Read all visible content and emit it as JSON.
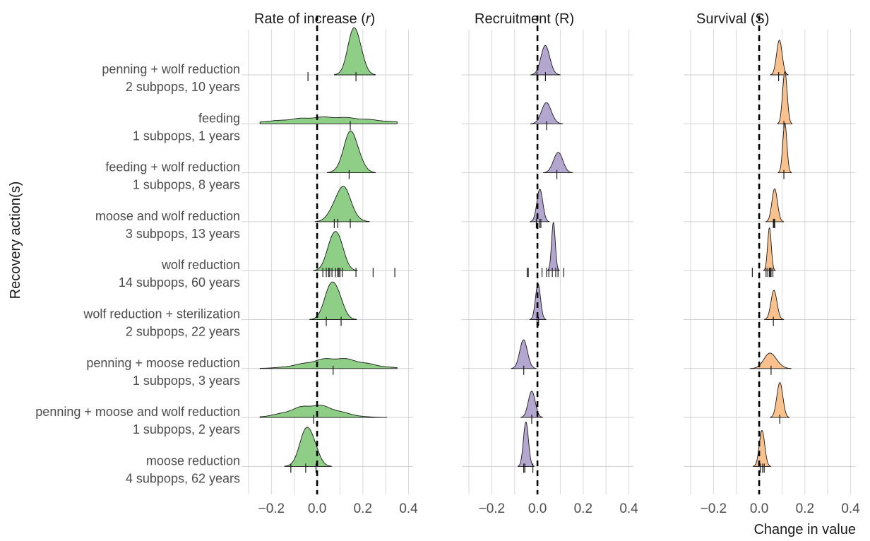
{
  "chart_data": {
    "type": "ridgeline",
    "ylabel": "Recovery action(s)",
    "xlabel": "Change in value",
    "xlim": [
      -0.3,
      0.42
    ],
    "xticks": [
      -0.2,
      0.0,
      0.2,
      0.4
    ],
    "xtick_labels": [
      "−0.2",
      "0.0",
      "0.2",
      "0.4"
    ],
    "reference_line": 0,
    "grid": true,
    "categories": [
      {
        "action": "penning + wolf reduction",
        "detail": "2 subpops, 10 years"
      },
      {
        "action": "feeding",
        "detail": "1 subpops, 1 years"
      },
      {
        "action": "feeding + wolf reduction",
        "detail": "1 subpops, 8 years"
      },
      {
        "action": "moose and wolf reduction",
        "detail": "3 subpops, 13 years"
      },
      {
        "action": "wolf reduction",
        "detail": "14 subpops, 60 years"
      },
      {
        "action": "wolf reduction + sterilization",
        "detail": "2 subpops, 22 years"
      },
      {
        "action": "penning + moose reduction",
        "detail": "1 subpops, 3 years"
      },
      {
        "action": "penning + moose and wolf reduction",
        "detail": "1 subpops, 2 years"
      },
      {
        "action": "moose reduction",
        "detail": "4 subpops, 62 years"
      }
    ],
    "panels": [
      {
        "title_main": "Rate of increase (",
        "title_symbol": "r",
        "title_end": ")",
        "color": "#8fce87",
        "distributions": [
          {
            "mean": 0.165,
            "sd": 0.028,
            "height": 0.95,
            "obs": [
              -0.04,
              0.17
            ]
          },
          {
            "mean": 0.05,
            "sd": 0.19,
            "height": 0.13,
            "obs": [
              0.145
            ]
          },
          {
            "mean": 0.15,
            "sd": 0.033,
            "height": 0.8,
            "obs": [
              0.14
            ]
          },
          {
            "mean": 0.11,
            "sd": 0.037,
            "height": 0.68,
            "obs": [
              0.075,
              0.09,
              0.145
            ]
          },
          {
            "mean": 0.08,
            "sd": 0.03,
            "height": 0.82,
            "obs": [
              0.025,
              0.04,
              0.05,
              0.055,
              0.065,
              0.08,
              0.09,
              0.095,
              0.1,
              0.11,
              0.17,
              0.245,
              0.34
            ]
          },
          {
            "mean": 0.07,
            "sd": 0.032,
            "height": 0.78,
            "obs": [
              0.04,
              0.105
            ]
          },
          {
            "mean": 0.08,
            "sd": 0.12,
            "height": 0.2,
            "obs": [
              0.07
            ]
          },
          {
            "mean": -0.015,
            "sd": 0.1,
            "height": 0.24,
            "obs": [
              -0.015
            ]
          },
          {
            "mean": -0.04,
            "sd": 0.032,
            "height": 0.8,
            "obs": [
              -0.115,
              -0.05,
              -0.005
            ]
          }
        ]
      },
      {
        "title_main": "Recruitment (R)",
        "title_symbol": "",
        "title_end": "",
        "color": "#b3a6cf",
        "distributions": [
          {
            "mean": 0.035,
            "sd": 0.02,
            "height": 0.55,
            "obs": [
              -0.002,
              0.035
            ]
          },
          {
            "mean": 0.04,
            "sd": 0.022,
            "height": 0.4,
            "obs": [
              0.04
            ]
          },
          {
            "mean": 0.09,
            "sd": 0.02,
            "height": 0.42,
            "obs": [
              0.085
            ]
          },
          {
            "mean": 0.01,
            "sd": 0.013,
            "height": 0.62,
            "obs": [
              -0.005,
              0.01,
              0.015
            ]
          },
          {
            "mean": 0.07,
            "sd": 0.008,
            "height": 1.0,
            "obs": [
              -0.045,
              -0.04,
              0.02,
              0.04,
              0.05,
              0.065,
              0.08,
              0.09,
              0.115
            ]
          },
          {
            "mean": 0.002,
            "sd": 0.011,
            "height": 0.7,
            "obs": [
              -0.002,
              0.005
            ]
          },
          {
            "mean": -0.06,
            "sd": 0.017,
            "height": 0.55,
            "obs": [
              -0.06
            ]
          },
          {
            "mean": -0.025,
            "sd": 0.015,
            "height": 0.55,
            "obs": [
              -0.025
            ]
          },
          {
            "mean": -0.05,
            "sd": 0.011,
            "height": 0.88,
            "obs": [
              -0.06,
              -0.055,
              -0.02
            ]
          }
        ]
      },
      {
        "title_main": "Survival (S)",
        "title_symbol": "",
        "title_end": "",
        "color": "#f9c18e",
        "distributions": [
          {
            "mean": 0.088,
            "sd": 0.012,
            "height": 0.72,
            "obs": [
              0.085
            ]
          },
          {
            "mean": 0.112,
            "sd": 0.01,
            "height": 1.0,
            "obs": [
              0.108
            ]
          },
          {
            "mean": 0.112,
            "sd": 0.009,
            "height": 0.95,
            "obs": [
              0.108
            ]
          },
          {
            "mean": 0.068,
            "sd": 0.012,
            "height": 0.68,
            "obs": [
              0.062,
              0.065,
              0.068
            ]
          },
          {
            "mean": 0.045,
            "sd": 0.008,
            "height": 0.82,
            "obs": [
              -0.03,
              0.03,
              0.038,
              0.045,
              0.048,
              0.052,
              0.06
            ]
          },
          {
            "mean": 0.065,
            "sd": 0.013,
            "height": 0.6,
            "obs": [
              0.062
            ]
          },
          {
            "mean": 0.05,
            "sd": 0.028,
            "height": 0.3,
            "obs": [
              0.052
            ]
          },
          {
            "mean": 0.09,
            "sd": 0.013,
            "height": 0.72,
            "obs": [
              0.09
            ]
          },
          {
            "mean": 0.012,
            "sd": 0.012,
            "height": 0.68,
            "obs": [
              0.005,
              0.015,
              0.022
            ]
          }
        ]
      }
    ]
  }
}
